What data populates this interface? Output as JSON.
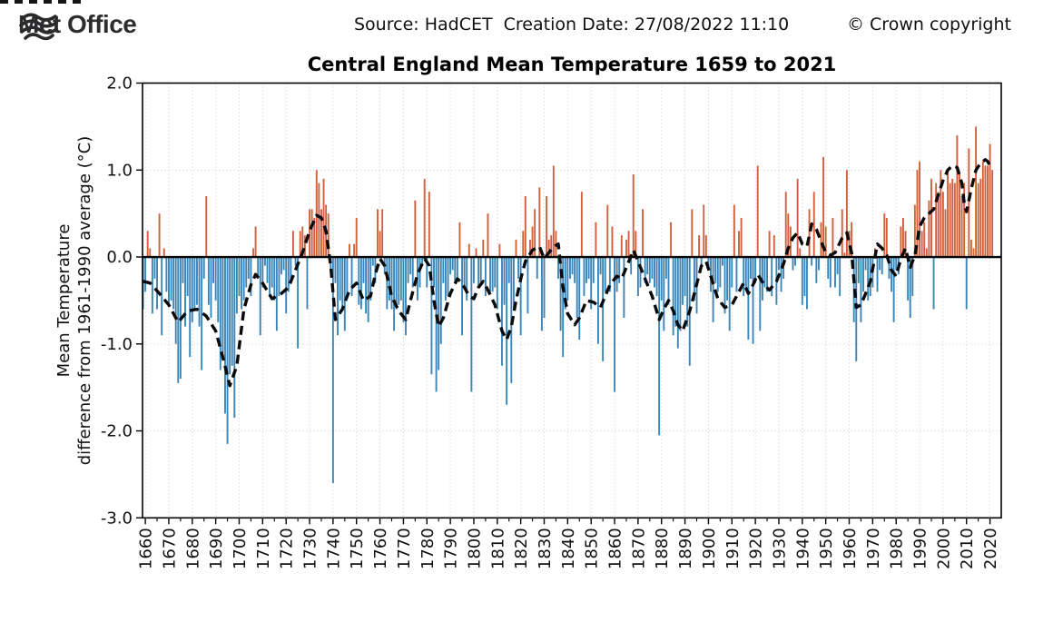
{
  "header": {
    "logo_text": "Met Office",
    "source_text": "Source: HadCET  Creation Date: 27/08/2022 11:10",
    "copyright": "© Crown copyright"
  },
  "chart_data": {
    "type": "bar",
    "title": "Central England Mean Temperature 1659 to 2021",
    "ylabel_line1": "Mean Temperature",
    "ylabel_line2": "difference from 1961-1990 average (°C)",
    "xlabel": "",
    "ylim": [
      -3.0,
      2.0
    ],
    "xlim": [
      1658.8,
      2024.8
    ],
    "yticks": [
      2.0,
      1.0,
      0.0,
      -1.0,
      -2.0,
      -3.0
    ],
    "xtick_start": 1660,
    "xtick_end": 2020,
    "xtick_step": 10,
    "xminor_step": 5,
    "grid": true,
    "legend": "none",
    "colors": {
      "positive": "#d2603c",
      "negative": "#3a86b8",
      "smoothed": "#0a0a0a",
      "grid": "#d8d8d8",
      "axis": "#000000"
    },
    "start_year": 1659,
    "end_year": 2021,
    "values": [
      -0.6,
      -0.4,
      0.3,
      0.1,
      -0.65,
      -0.25,
      -0.6,
      0.5,
      -0.9,
      0.1,
      -0.4,
      -0.55,
      -0.5,
      -0.6,
      -1.0,
      -1.45,
      -1.4,
      -0.3,
      -0.8,
      -0.45,
      -1.15,
      -0.75,
      -0.6,
      -0.55,
      -0.8,
      -1.3,
      -0.25,
      0.7,
      -0.55,
      -0.7,
      -0.3,
      -0.5,
      -0.75,
      -1.3,
      -1.1,
      -1.8,
      -2.15,
      -1.35,
      -1.25,
      -1.85,
      -0.65,
      -0.45,
      -0.6,
      -0.5,
      -0.35,
      -0.25,
      -0.45,
      0.1,
      0.35,
      -0.25,
      -0.9,
      -0.35,
      -0.1,
      -0.3,
      -0.45,
      -0.35,
      -0.5,
      -0.85,
      -0.45,
      -0.2,
      -0.15,
      -0.65,
      -0.4,
      -0.3,
      0.3,
      -0.1,
      -1.05,
      0.3,
      0.35,
      0.25,
      -0.6,
      0.55,
      0.55,
      0.45,
      1.0,
      0.85,
      0.55,
      0.9,
      0.6,
      0.5,
      -0.15,
      -2.6,
      -0.3,
      -0.9,
      -0.5,
      -0.6,
      -0.85,
      -0.45,
      0.15,
      -0.45,
      0.15,
      0.45,
      -0.55,
      -0.6,
      -0.3,
      -0.65,
      -0.75,
      -0.5,
      -0.1,
      -0.3,
      0.55,
      0.3,
      0.55,
      -0.2,
      -0.6,
      -0.5,
      -0.6,
      -0.85,
      -0.6,
      -0.55,
      -0.5,
      -0.75,
      -0.9,
      -0.3,
      -0.2,
      -0.35,
      0.65,
      -0.5,
      -0.35,
      -0.1,
      0.9,
      -0.35,
      0.75,
      -1.35,
      -0.35,
      -1.55,
      -1.3,
      -1.0,
      -0.3,
      -0.5,
      -0.45,
      -0.2,
      -0.15,
      -0.3,
      -0.25,
      0.4,
      -0.9,
      -0.35,
      -0.5,
      0.15,
      -1.55,
      -0.3,
      0.1,
      -0.35,
      -0.3,
      0.2,
      -0.45,
      0.5,
      -0.4,
      -0.4,
      -0.35,
      -0.6,
      0.15,
      -1.25,
      -0.55,
      -1.7,
      -0.3,
      -1.45,
      -0.6,
      0.2,
      -0.25,
      -0.9,
      0.3,
      0.7,
      -0.65,
      0.2,
      0.35,
      0.55,
      -0.25,
      0.8,
      -0.85,
      -0.7,
      0.7,
      0.2,
      0.25,
      1.05,
      0.3,
      -0.25,
      -0.85,
      -1.15,
      -0.6,
      -0.5,
      -0.25,
      -0.2,
      -0.3,
      -0.7,
      -0.95,
      0.75,
      -0.45,
      -0.3,
      -0.25,
      -0.6,
      -0.3,
      0.4,
      -1.0,
      -0.2,
      -1.2,
      -0.4,
      0.6,
      -0.4,
      0.35,
      -1.55,
      -0.4,
      -0.3,
      0.25,
      -0.7,
      0.2,
      0.3,
      -0.2,
      0.95,
      0.3,
      -0.45,
      -0.35,
      0.55,
      -0.3,
      -0.2,
      -0.3,
      -0.25,
      -0.35,
      -0.45,
      -2.05,
      -0.5,
      -0.85,
      -0.25,
      -0.55,
      0.4,
      -0.9,
      -0.8,
      -1.05,
      -0.85,
      -0.55,
      -0.45,
      -0.8,
      -1.25,
      0.55,
      -0.5,
      -0.65,
      0.25,
      -0.1,
      0.6,
      0.25,
      -0.15,
      -0.4,
      -0.75,
      -0.3,
      -0.4,
      -0.35,
      -0.1,
      -0.65,
      -0.5,
      -0.85,
      -0.35,
      0.6,
      -0.4,
      0.3,
      0.45,
      -0.45,
      -0.35,
      -0.95,
      -0.25,
      -1.0,
      -0.3,
      1.05,
      -0.85,
      -0.5,
      -0.35,
      -0.4,
      0.3,
      -0.45,
      0.25,
      -0.55,
      -0.15,
      -0.4,
      -0.25,
      0.75,
      0.5,
      0.35,
      -0.15,
      -0.1,
      0.9,
      0.1,
      -0.55,
      -0.45,
      -0.6,
      0.55,
      -0.1,
      0.75,
      -0.3,
      -0.15,
      0.4,
      1.15,
      0.35,
      -0.25,
      -0.35,
      0.45,
      -0.35,
      -0.2,
      -0.45,
      0.55,
      0.05,
      1.0,
      0.3,
      0.4,
      -0.75,
      -1.2,
      -0.3,
      -0.75,
      -0.4,
      -0.15,
      -0.5,
      -0.45,
      -0.35,
      0.1,
      -0.4,
      -0.15,
      -0.2,
      0.5,
      0.45,
      -0.25,
      -0.4,
      -0.75,
      -0.15,
      -0.2,
      0.35,
      0.45,
      0.3,
      -0.5,
      -0.7,
      -0.45,
      0.6,
      1.0,
      1.1,
      0.3,
      0.4,
      0.1,
      0.65,
      0.9,
      -0.6,
      0.85,
      0.75,
      1.0,
      0.75,
      0.55,
      1.0,
      0.85,
      0.9,
      0.85,
      1.4,
      0.95,
      0.7,
      0.85,
      -0.6,
      1.25,
      0.2,
      0.1,
      1.5,
      0.85,
      0.9,
      1.1,
      1.05,
      1.05,
      1.3,
      1.0
    ],
    "smoothed": [
      [
        1659,
        -0.28
      ],
      [
        1662,
        -0.3
      ],
      [
        1666,
        -0.42
      ],
      [
        1670,
        -0.55
      ],
      [
        1674,
        -0.75
      ],
      [
        1678,
        -0.62
      ],
      [
        1682,
        -0.6
      ],
      [
        1686,
        -0.68
      ],
      [
        1690,
        -0.85
      ],
      [
        1693,
        -1.15
      ],
      [
        1696,
        -1.48
      ],
      [
        1699,
        -1.25
      ],
      [
        1702,
        -0.6
      ],
      [
        1705,
        -0.32
      ],
      [
        1707,
        -0.2
      ],
      [
        1710,
        -0.3
      ],
      [
        1714,
        -0.48
      ],
      [
        1718,
        -0.42
      ],
      [
        1721,
        -0.35
      ],
      [
        1724,
        -0.15
      ],
      [
        1727,
        0.05
      ],
      [
        1730,
        0.3
      ],
      [
        1733,
        0.48
      ],
      [
        1735,
        0.45
      ],
      [
        1737,
        0.3
      ],
      [
        1739,
        -0.1
      ],
      [
        1741,
        -0.72
      ],
      [
        1744,
        -0.6
      ],
      [
        1747,
        -0.38
      ],
      [
        1750,
        -0.3
      ],
      [
        1753,
        -0.5
      ],
      [
        1756,
        -0.45
      ],
      [
        1758,
        -0.2
      ],
      [
        1760,
        -0.02
      ],
      [
        1762,
        -0.1
      ],
      [
        1765,
        -0.45
      ],
      [
        1768,
        -0.62
      ],
      [
        1771,
        -0.72
      ],
      [
        1773,
        -0.5
      ],
      [
        1776,
        -0.2
      ],
      [
        1779,
        -0.02
      ],
      [
        1781,
        -0.1
      ],
      [
        1783,
        -0.5
      ],
      [
        1785,
        -0.8
      ],
      [
        1787,
        -0.7
      ],
      [
        1790,
        -0.42
      ],
      [
        1793,
        -0.25
      ],
      [
        1795,
        -0.3
      ],
      [
        1798,
        -0.45
      ],
      [
        1800,
        -0.48
      ],
      [
        1802,
        -0.35
      ],
      [
        1804,
        -0.28
      ],
      [
        1806,
        -0.38
      ],
      [
        1809,
        -0.55
      ],
      [
        1812,
        -0.85
      ],
      [
        1814,
        -0.95
      ],
      [
        1816,
        -0.8
      ],
      [
        1818,
        -0.5
      ],
      [
        1820,
        -0.25
      ],
      [
        1822,
        -0.05
      ],
      [
        1825,
        0.08
      ],
      [
        1828,
        0.12
      ],
      [
        1830,
        -0.02
      ],
      [
        1832,
        0.05
      ],
      [
        1834,
        0.12
      ],
      [
        1836,
        0.15
      ],
      [
        1838,
        -0.35
      ],
      [
        1840,
        -0.65
      ],
      [
        1843,
        -0.78
      ],
      [
        1845,
        -0.7
      ],
      [
        1848,
        -0.5
      ],
      [
        1851,
        -0.52
      ],
      [
        1854,
        -0.58
      ],
      [
        1856,
        -0.45
      ],
      [
        1858,
        -0.32
      ],
      [
        1861,
        -0.22
      ],
      [
        1863,
        -0.25
      ],
      [
        1865,
        -0.12
      ],
      [
        1868,
        0.08
      ],
      [
        1870,
        -0.05
      ],
      [
        1873,
        -0.25
      ],
      [
        1876,
        -0.45
      ],
      [
        1879,
        -0.72
      ],
      [
        1881,
        -0.6
      ],
      [
        1883,
        -0.5
      ],
      [
        1885,
        -0.62
      ],
      [
        1887,
        -0.78
      ],
      [
        1889,
        -0.85
      ],
      [
        1892,
        -0.62
      ],
      [
        1894,
        -0.42
      ],
      [
        1897,
        -0.1
      ],
      [
        1899,
        -0.05
      ],
      [
        1901,
        -0.22
      ],
      [
        1904,
        -0.48
      ],
      [
        1907,
        -0.58
      ],
      [
        1910,
        -0.55
      ],
      [
        1913,
        -0.4
      ],
      [
        1915,
        -0.3
      ],
      [
        1917,
        -0.42
      ],
      [
        1919,
        -0.32
      ],
      [
        1921,
        -0.2
      ],
      [
        1924,
        -0.33
      ],
      [
        1926,
        -0.38
      ],
      [
        1929,
        -0.28
      ],
      [
        1932,
        -0.08
      ],
      [
        1934,
        0.1
      ],
      [
        1936,
        0.22
      ],
      [
        1938,
        0.28
      ],
      [
        1940,
        0.15
      ],
      [
        1942,
        0.12
      ],
      [
        1944,
        0.38
      ],
      [
        1946,
        0.32
      ],
      [
        1948,
        0.18
      ],
      [
        1950,
        0.05
      ],
      [
        1952,
        0.02
      ],
      [
        1954,
        0.05
      ],
      [
        1957,
        0.22
      ],
      [
        1959,
        0.28
      ],
      [
        1961,
        0.05
      ],
      [
        1963,
        -0.58
      ],
      [
        1965,
        -0.55
      ],
      [
        1967,
        -0.42
      ],
      [
        1969,
        -0.28
      ],
      [
        1971,
        0.0
      ],
      [
        1972,
        0.15
      ],
      [
        1974,
        0.1
      ],
      [
        1976,
        0.02
      ],
      [
        1978,
        -0.15
      ],
      [
        1980,
        -0.22
      ],
      [
        1982,
        -0.02
      ],
      [
        1984,
        0.1
      ],
      [
        1986,
        -0.12
      ],
      [
        1988,
        0.02
      ],
      [
        1990,
        0.35
      ],
      [
        1992,
        0.45
      ],
      [
        1994,
        0.5
      ],
      [
        1996,
        0.55
      ],
      [
        1998,
        0.72
      ],
      [
        2000,
        0.88
      ],
      [
        2002,
        1.0
      ],
      [
        2004,
        1.05
      ],
      [
        2006,
        1.03
      ],
      [
        2008,
        0.85
      ],
      [
        2009,
        0.62
      ],
      [
        2010,
        0.52
      ],
      [
        2012,
        0.78
      ],
      [
        2014,
        1.0
      ],
      [
        2016,
        1.08
      ],
      [
        2018,
        1.12
      ],
      [
        2019,
        1.1
      ],
      [
        2020,
        1.05
      ],
      [
        2021,
        1.07
      ]
    ]
  }
}
